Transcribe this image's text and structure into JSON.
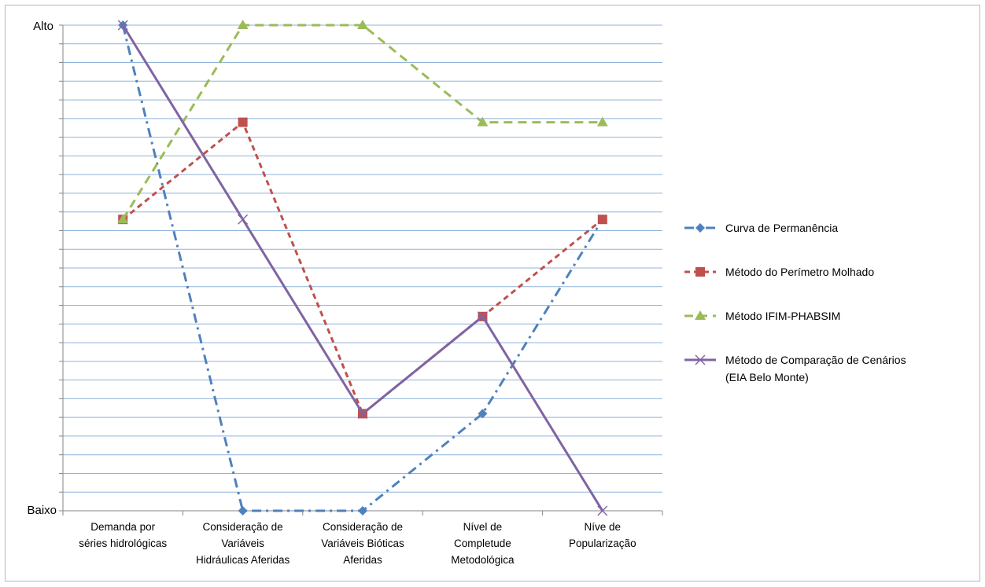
{
  "chart_data": {
    "type": "line",
    "y_tick_labels": [
      "Baixo",
      "Alto"
    ],
    "ylim": [
      0,
      100
    ],
    "y_gridline_count": 26,
    "grid": true,
    "legend_position": "right",
    "categories": [
      [
        "Demanda por",
        "séries hidrológicas"
      ],
      [
        "Consideração de",
        "Variáveis",
        "Hidráulicas Aferidas"
      ],
      [
        "Consideração de",
        "Variáveis Bióticas",
        "Aferidas"
      ],
      [
        "Nível de",
        "Completude",
        "Metodológica"
      ],
      [
        "Níve de",
        "Popularização"
      ]
    ],
    "series": [
      {
        "name": "Curva de Permanência",
        "values": [
          100,
          0,
          0,
          20,
          60
        ],
        "color": "#4f81bd",
        "marker": "diamond",
        "dash": "dashdot"
      },
      {
        "name": "Método do Perímetro Molhado",
        "values": [
          60,
          80,
          20,
          40,
          60
        ],
        "color": "#c0504d",
        "marker": "square",
        "dash": "dash"
      },
      {
        "name": "Método IFIM-PHABSIM",
        "values": [
          60,
          100,
          100,
          80,
          80
        ],
        "color": "#9bbb59",
        "marker": "triangle",
        "dash": "longdash"
      },
      {
        "name": "Método de Comparação  de Cenários (EIA Belo Monte)",
        "values": [
          100,
          60,
          20,
          40,
          0
        ],
        "color": "#8064a2",
        "marker": "x",
        "dash": "solid"
      }
    ]
  }
}
